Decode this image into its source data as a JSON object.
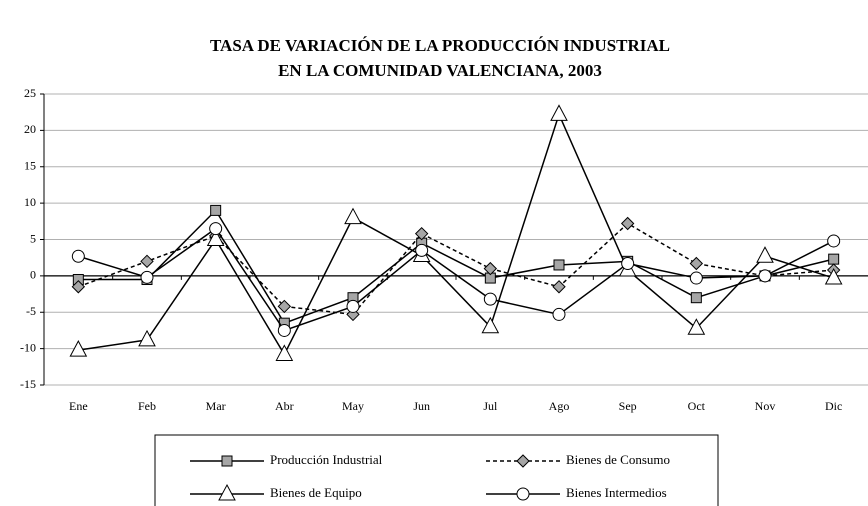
{
  "chart_data": {
    "type": "line",
    "title": [
      "TASA DE VARIACIÓN DE LA PRODUCCIÓN INDUSTRIAL",
      "EN LA COMUNIDAD VALENCIANA, 2003"
    ],
    "categories": [
      "Ene",
      "Feb",
      "Mar",
      "Abr",
      "May",
      "Jun",
      "Jul",
      "Ago",
      "Sep",
      "Oct",
      "Nov",
      "Dic"
    ],
    "ylim": [
      -15,
      25
    ],
    "yticks": [
      -15,
      -10,
      -5,
      0,
      5,
      10,
      15,
      20,
      25
    ],
    "grid": true,
    "series": [
      {
        "name": "Producción Industrial",
        "color": "#000000",
        "marker": "square",
        "marker_fill": "#a6a6a6",
        "dash": false,
        "values": [
          -0.5,
          -0.5,
          9,
          -6.5,
          -3,
          4.5,
          -0.3,
          1.5,
          2,
          -3,
          0,
          2.3
        ]
      },
      {
        "name": "Bienes de Consumo",
        "color": "#000000",
        "marker": "diamond",
        "marker_fill": "#a6a6a6",
        "dash": true,
        "values": [
          -1.5,
          2,
          5.5,
          -4.2,
          -5.3,
          5.8,
          1,
          -1.5,
          7.2,
          1.7,
          0,
          0.8
        ]
      },
      {
        "name": "Bienes de Equipo",
        "color": "#000000",
        "marker": "triangle",
        "marker_fill": "#ffffff",
        "dash": false,
        "values": [
          -10.2,
          -8.8,
          5,
          -10.8,
          8,
          2.8,
          -7,
          22.2,
          0.8,
          -7.2,
          2.7,
          -0.3
        ]
      },
      {
        "name": "Bienes Intermedios",
        "color": "#000000",
        "marker": "circle",
        "marker_fill": "#ffffff",
        "dash": false,
        "values": [
          2.7,
          -0.2,
          6.5,
          -7.5,
          -4.2,
          3.5,
          -3.2,
          -5.3,
          1.7,
          -0.3,
          0,
          4.8
        ]
      }
    ]
  }
}
